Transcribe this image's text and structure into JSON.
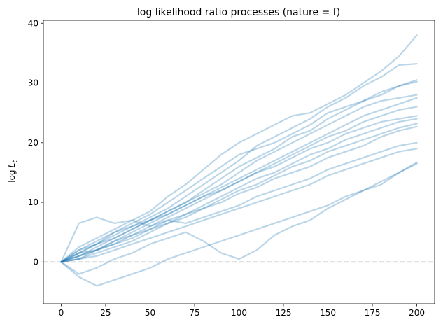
{
  "chart_data": {
    "type": "line",
    "title": "log likelihood ratio processes (nature = f)",
    "xlabel": "",
    "ylabel_main": "log",
    "ylabel_symbol": "L",
    "ylabel_sub": "t",
    "xlim": [
      -10,
      210
    ],
    "ylim": [
      -7,
      40.5
    ],
    "xticks": [
      0,
      25,
      50,
      75,
      100,
      125,
      150,
      175,
      200
    ],
    "yticks": [
      0,
      10,
      20,
      30,
      40
    ],
    "reference_line": {
      "y": 0,
      "style": "dashed",
      "color": "#999999"
    },
    "line_color": "#1f77b4",
    "line_alpha": 0.3,
    "grid": false,
    "legend": "none",
    "series": [
      {
        "x": [
          0,
          10,
          20,
          30,
          40,
          50,
          60,
          70,
          80,
          90,
          100,
          110,
          120,
          130,
          140,
          150,
          160,
          170,
          180,
          190,
          200
        ],
        "values": [
          0,
          2.5,
          4,
          5.5,
          7,
          8.5,
          11,
          13,
          15.5,
          18,
          20,
          21.5,
          23,
          24.5,
          25,
          26.5,
          28,
          30,
          32,
          34.5,
          38
        ]
      },
      {
        "x": [
          0,
          10,
          20,
          30,
          40,
          50,
          60,
          70,
          80,
          90,
          100,
          110,
          120,
          130,
          140,
          150,
          160,
          170,
          180,
          190,
          200
        ],
        "values": [
          0,
          1.5,
          3,
          5,
          6,
          7.5,
          9,
          11,
          13,
          15,
          17,
          19.5,
          21,
          22.5,
          24,
          26,
          27.5,
          29.5,
          31,
          33,
          33.2
        ]
      },
      {
        "x": [
          0,
          10,
          20,
          30,
          40,
          50,
          60,
          70,
          80,
          90,
          100,
          110,
          120,
          130,
          140,
          150,
          160,
          170,
          180,
          190,
          200
        ],
        "values": [
          0,
          2,
          3.5,
          5,
          6.5,
          8,
          10,
          12,
          14,
          16,
          18,
          19,
          20,
          21.5,
          23,
          25,
          26,
          27,
          28,
          29.5,
          30.5
        ]
      },
      {
        "x": [
          0,
          10,
          20,
          30,
          40,
          50,
          60,
          70,
          80,
          90,
          100,
          110,
          120,
          130,
          140,
          150,
          160,
          170,
          180,
          190,
          200
        ],
        "values": [
          0,
          1,
          2.5,
          4,
          5.5,
          7,
          8.5,
          10,
          12,
          14,
          16,
          17.5,
          19,
          21,
          22,
          24,
          25.5,
          27,
          28.5,
          29.5,
          30.2
        ]
      },
      {
        "x": [
          0,
          10,
          20,
          30,
          40,
          50,
          60,
          70,
          80,
          90,
          100,
          110,
          120,
          130,
          140,
          150,
          160,
          170,
          180,
          190,
          200
        ],
        "values": [
          0,
          1.5,
          3,
          4.5,
          6,
          7,
          8.5,
          10,
          11.5,
          13,
          15,
          17,
          18.5,
          20,
          21.5,
          23,
          24.5,
          26,
          27,
          27.5,
          28
        ]
      },
      {
        "x": [
          0,
          10,
          20,
          30,
          40,
          50,
          60,
          70,
          80,
          90,
          100,
          110,
          120,
          130,
          140,
          150,
          160,
          170,
          180,
          190,
          200
        ],
        "values": [
          0,
          1,
          2,
          3.5,
          5,
          6.5,
          8,
          9.5,
          11,
          12.5,
          14,
          15.5,
          17,
          18.5,
          20,
          21.5,
          23,
          24.5,
          25.5,
          26.5,
          27.5
        ]
      },
      {
        "x": [
          0,
          10,
          20,
          30,
          40,
          50,
          60,
          70,
          80,
          90,
          100,
          110,
          120,
          130,
          140,
          150,
          160,
          170,
          180,
          190,
          200
        ],
        "values": [
          0,
          2,
          3,
          4,
          5.5,
          7,
          8,
          9.5,
          11,
          12,
          13.5,
          15,
          16.5,
          18,
          19.5,
          21,
          22,
          23.5,
          24.5,
          25.5,
          26
        ]
      },
      {
        "x": [
          0,
          10,
          20,
          30,
          40,
          50,
          60,
          70,
          80,
          90,
          100,
          110,
          120,
          130,
          140,
          150,
          160,
          170,
          180,
          190,
          200
        ],
        "values": [
          0,
          0.5,
          2,
          3.5,
          4.5,
          6,
          7.5,
          9,
          10.5,
          12,
          13.5,
          15,
          16,
          17.5,
          19,
          20,
          21.5,
          22.5,
          23.5,
          24,
          24.5
        ]
      },
      {
        "x": [
          0,
          10,
          20,
          30,
          40,
          50,
          60,
          70,
          80,
          90,
          100,
          110,
          120,
          130,
          140,
          150,
          160,
          170,
          180,
          190,
          200
        ],
        "values": [
          0,
          1,
          2,
          3,
          4,
          5.5,
          7,
          8,
          9.5,
          11,
          12.5,
          14,
          15,
          16.5,
          18,
          19,
          20.5,
          21.5,
          22.5,
          23.5,
          24
        ]
      },
      {
        "x": [
          0,
          10,
          20,
          30,
          40,
          50,
          60,
          70,
          80,
          90,
          100,
          110,
          120,
          130,
          140,
          150,
          160,
          170,
          180,
          190,
          200
        ],
        "values": [
          0,
          0.5,
          1.5,
          2.5,
          3.5,
          5,
          6.5,
          8,
          9,
          10.5,
          12,
          13,
          14.5,
          16,
          17,
          18.5,
          19.5,
          20.5,
          21.5,
          22.5,
          23.2
        ]
      },
      {
        "x": [
          0,
          10,
          20,
          30,
          40,
          50,
          60,
          70,
          80,
          90,
          100,
          110,
          120,
          130,
          140,
          150,
          160,
          170,
          180,
          190,
          200
        ],
        "values": [
          0,
          1.5,
          2,
          3,
          4.5,
          5.5,
          6.5,
          7.5,
          9,
          10,
          11.5,
          12.5,
          14,
          15,
          16,
          17.5,
          18.5,
          19.5,
          21,
          22,
          22.7
        ]
      },
      {
        "x": [
          0,
          10,
          20,
          30,
          40,
          50,
          60,
          70,
          80,
          90,
          100,
          110,
          120,
          130,
          140,
          150,
          160,
          170,
          180,
          190,
          200
        ],
        "values": [
          0,
          6.5,
          7.5,
          6.5,
          7,
          6,
          7,
          6.5,
          7.5,
          8.5,
          9.5,
          11,
          12,
          13,
          14,
          15.5,
          16.5,
          17.5,
          18.5,
          19.5,
          20
        ]
      },
      {
        "x": [
          0,
          10,
          20,
          30,
          40,
          50,
          60,
          70,
          80,
          90,
          100,
          110,
          120,
          130,
          140,
          150,
          160,
          170,
          180,
          190,
          200
        ],
        "values": [
          0,
          0.5,
          1,
          2,
          3,
          4,
          5,
          6,
          7,
          8,
          9,
          10,
          11,
          12,
          13,
          14.5,
          15.5,
          16.5,
          17.5,
          18.5,
          19
        ]
      },
      {
        "x": [
          0,
          10,
          20,
          30,
          40,
          50,
          60,
          70,
          80,
          90,
          100,
          110,
          120,
          130,
          140,
          150,
          160,
          170,
          180,
          190,
          200
        ],
        "values": [
          0,
          -2.5,
          -4,
          -3,
          -2,
          -1,
          0.5,
          1.5,
          2.5,
          3.5,
          4.5,
          5.5,
          6.5,
          7.5,
          8.5,
          9.5,
          11,
          12,
          13.5,
          15,
          16.7
        ]
      },
      {
        "x": [
          0,
          10,
          20,
          30,
          40,
          50,
          60,
          70,
          80,
          90,
          100,
          110,
          120,
          130,
          140,
          150,
          160,
          170,
          180,
          190,
          200
        ],
        "values": [
          0,
          -2,
          -1,
          0.5,
          1.5,
          3,
          4,
          5,
          3.5,
          1.5,
          0.5,
          2,
          4.5,
          6,
          7,
          9,
          10.5,
          12,
          13,
          15,
          16.5
        ]
      }
    ]
  }
}
